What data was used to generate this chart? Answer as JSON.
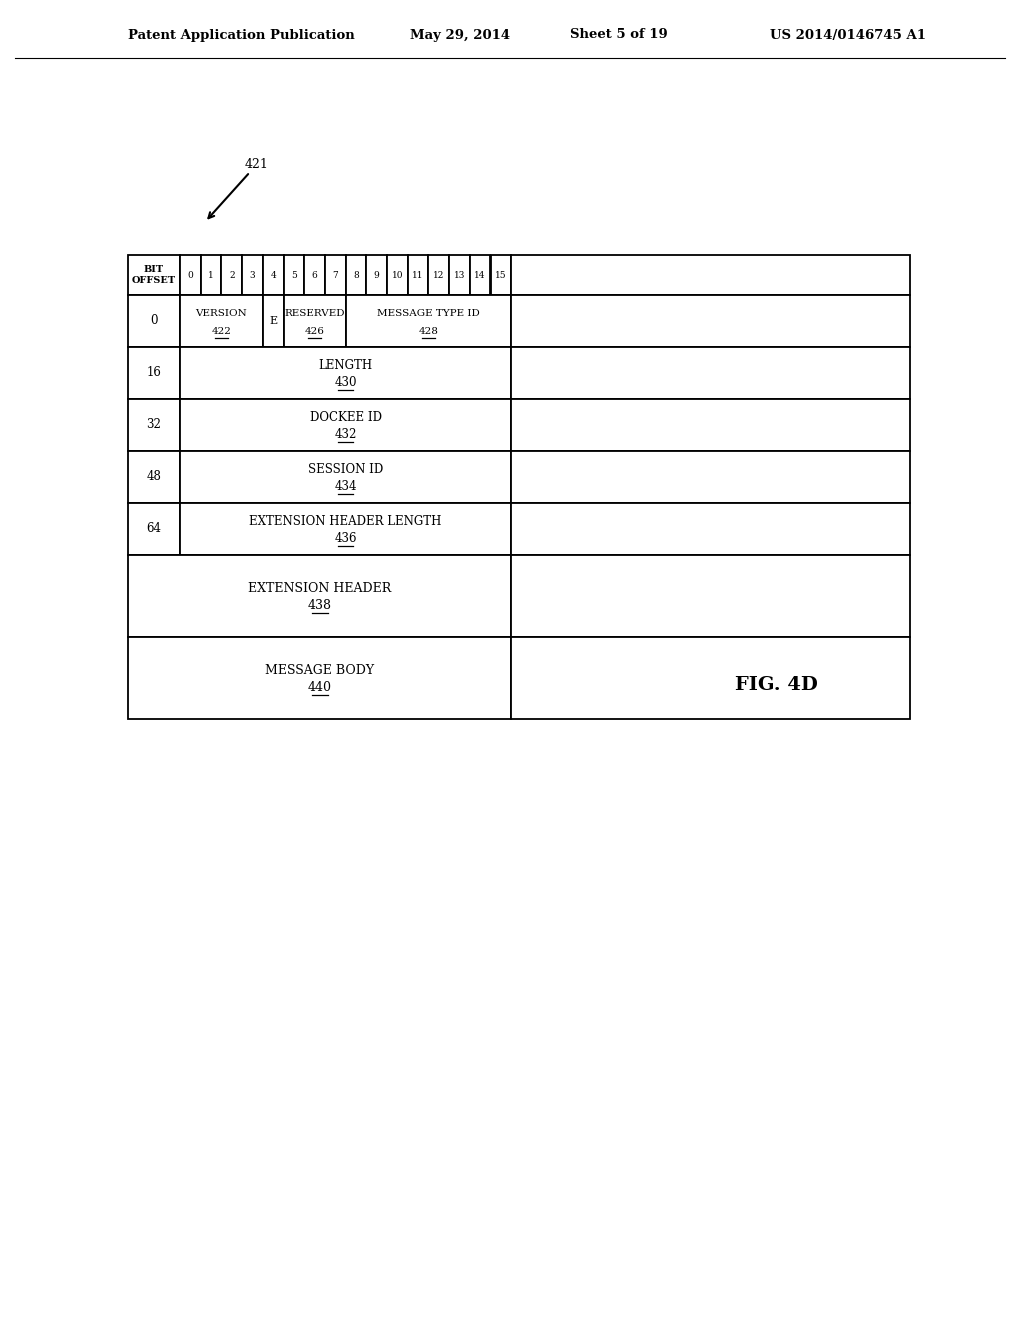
{
  "header_left": "Patent Application Publication",
  "header_date": "May 29, 2014",
  "header_sheet": "Sheet 5 of 19",
  "header_patent": "US 2014/0146745 A1",
  "fig_label": "FIG. 4D",
  "ref_num": "421",
  "bg_color": "#ffffff",
  "lc": "#000000",
  "bit_numbers": [
    "0",
    "1",
    "2",
    "3",
    "4",
    "5",
    "6",
    "7",
    "8",
    "9",
    "10",
    "11",
    "12",
    "13",
    "14",
    "15"
  ],
  "row0_fields": [
    {
      "label": "VERSION",
      "ref": "422",
      "span": 4,
      "underline": true
    },
    {
      "label": "E",
      "ref": null,
      "span": 1,
      "underline": false
    },
    {
      "label": "RESERVED",
      "ref": "426",
      "span": 3,
      "underline": true
    },
    {
      "label": "MESSAGE TYPE ID",
      "ref": "428",
      "span": 8,
      "underline": true
    }
  ],
  "data_rows": [
    {
      "offset": "16",
      "label": "LENGTH",
      "ref": "430"
    },
    {
      "offset": "32",
      "label": "DOCKEE ID",
      "ref": "432"
    },
    {
      "offset": "48",
      "label": "SESSION ID",
      "ref": "434"
    },
    {
      "offset": "64",
      "label": "EXTENSION HEADER LENGTH",
      "ref": "436"
    }
  ],
  "ext_rows": [
    {
      "label": "EXTENSION HEADER",
      "ref": "438"
    },
    {
      "label": "MESSAGE BODY",
      "ref": "440"
    }
  ]
}
